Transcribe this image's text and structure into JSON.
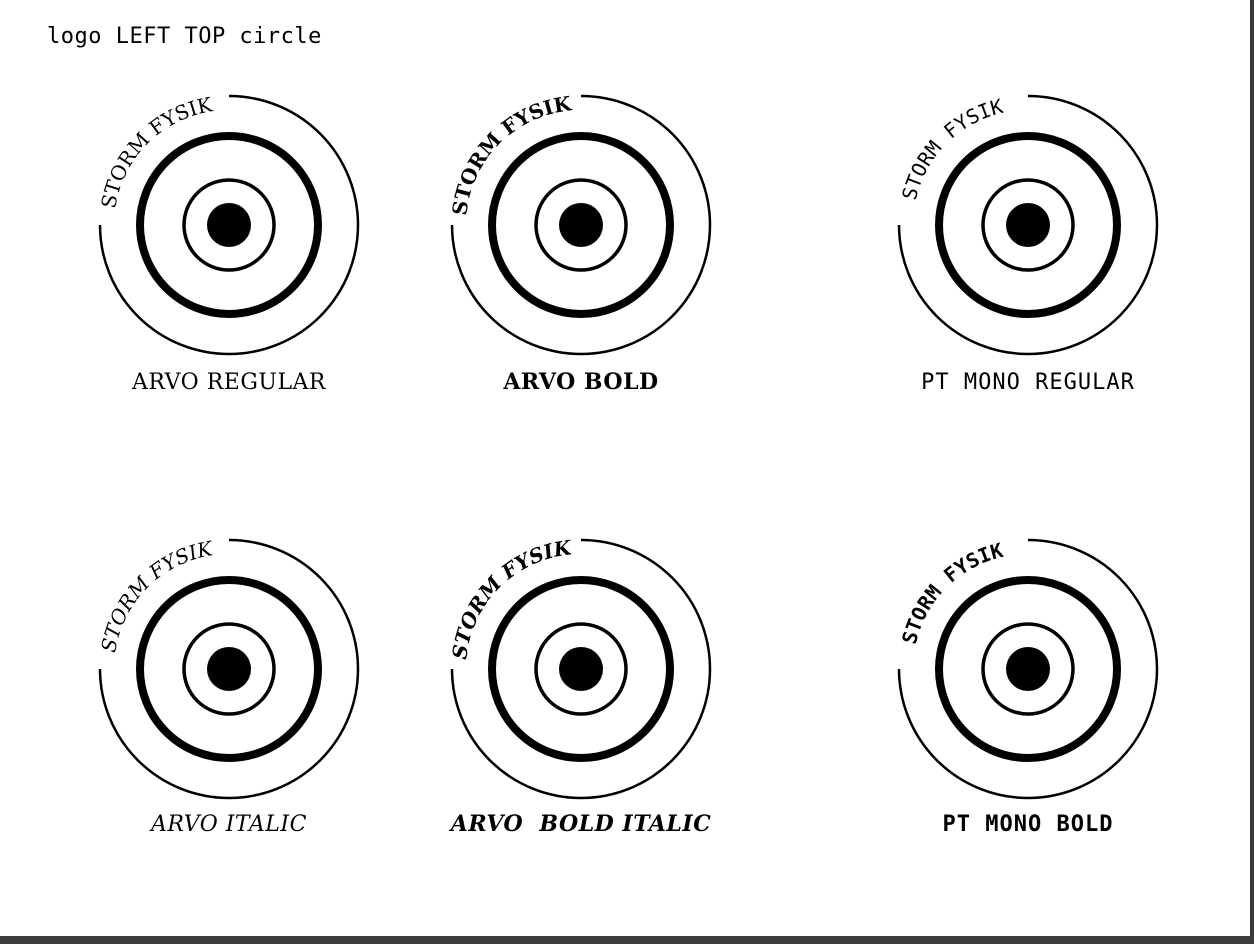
{
  "page_title": "logo LEFT TOP circle",
  "logo_text": "STORM FYSIK",
  "variants": [
    {
      "caption": "ARVO REGULAR",
      "family": "serif",
      "bold": false,
      "italic": false
    },
    {
      "caption": "ARVO BOLD",
      "family": "serif",
      "bold": true,
      "italic": false
    },
    {
      "caption": "PT MONO REGULAR",
      "family": "mono",
      "bold": false,
      "italic": false
    },
    {
      "caption": "ARVO ITALIC",
      "family": "serif",
      "bold": false,
      "italic": true
    },
    {
      "caption": "ARVO  BOLD ITALIC",
      "family": "serif",
      "bold": true,
      "italic": true
    },
    {
      "caption": "PT MONO BOLD",
      "family": "mono",
      "bold": true,
      "italic": false
    }
  ],
  "colors": {
    "ink": "#000000",
    "background": "#ffffff",
    "frame": "#3c3c3c"
  }
}
